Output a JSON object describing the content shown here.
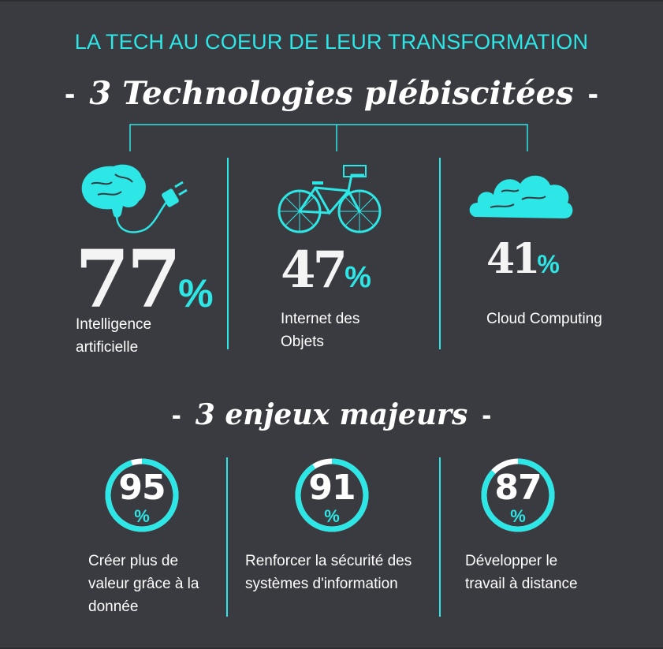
{
  "title": "LA TECH AU COEUR DE LEUR TRANSFORMATION",
  "section_tech": {
    "heading": "3 Technologies plébiscitées",
    "items": [
      {
        "value": "77",
        "percent_sign": "%",
        "label_line1": "Intelligence",
        "label_line2": "artificielle",
        "icon": "brain-plug-icon"
      },
      {
        "value": "47",
        "percent_sign": "%",
        "label_line1": "Internet des",
        "label_line2": "Objets",
        "icon": "bicycle-icon"
      },
      {
        "value": "41",
        "percent_sign": "%",
        "label_line1": "Cloud Computing",
        "label_line2": "",
        "icon": "cloud-icon"
      }
    ]
  },
  "section_issues": {
    "heading": "3 enjeux majeurs",
    "items": [
      {
        "value": "95",
        "percent_sign": "%",
        "fill_percent": 95,
        "label_line1": "Créer plus de",
        "label_line2": "valeur grâce à la",
        "label_line3": "donnée"
      },
      {
        "value": "91",
        "percent_sign": "%",
        "fill_percent": 91,
        "label_line1": "Renforcer la sécurité des",
        "label_line2": "systèmes d'information",
        "label_line3": ""
      },
      {
        "value": "87",
        "percent_sign": "%",
        "fill_percent": 87,
        "label_line1": "Développer le",
        "label_line2": "travail à distance",
        "label_line3": ""
      }
    ]
  },
  "colors": {
    "background": "#3a3b40",
    "accent": "#2de6e6",
    "text": "#ffffff"
  }
}
